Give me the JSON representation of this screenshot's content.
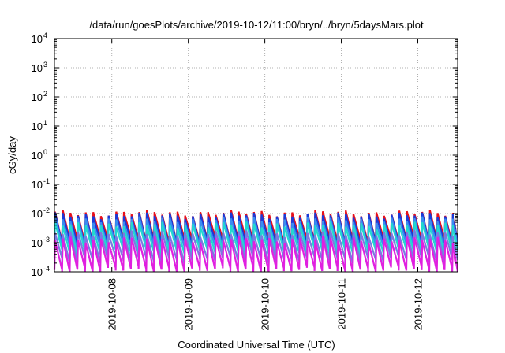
{
  "chart_data": {
    "type": "line",
    "title": "/data/run/goesPlots/archive/2019-10-12/11:00/bryn/../bryn/5daysMars.plot",
    "xlabel": "Coordinated Universal Time (UTC)",
    "ylabel": "cGy/day",
    "yscale": "log",
    "ylim": [
      0.0001,
      10000
    ],
    "y_ticks": [
      {
        "value": 0.0001,
        "base": "10",
        "exp": "-4"
      },
      {
        "value": 0.001,
        "base": "10",
        "exp": "-3"
      },
      {
        "value": 0.01,
        "base": "10",
        "exp": "-2"
      },
      {
        "value": 0.1,
        "base": "10",
        "exp": "-1"
      },
      {
        "value": 1,
        "base": "10",
        "exp": "0"
      },
      {
        "value": 10,
        "base": "10",
        "exp": "1"
      },
      {
        "value": 100,
        "base": "10",
        "exp": "2"
      },
      {
        "value": 1000,
        "base": "10",
        "exp": "3"
      },
      {
        "value": 10000,
        "base": "10",
        "exp": "4"
      }
    ],
    "xlim": [
      "2019-10-07 06:00",
      "2019-10-12 12:30"
    ],
    "x_ticks": [
      "2019-10-08",
      "2019-10-09",
      "2019-10-10",
      "2019-10-11",
      "2019-10-12"
    ],
    "grid": true,
    "pattern": "sawtooth",
    "period_hours": 2.4,
    "series": [
      {
        "color": "#e8101a",
        "peak": 0.0105,
        "trough": 0.0012
      },
      {
        "color": "#1a3ad8",
        "peak": 0.0088,
        "trough": 0.00095
      },
      {
        "color": "#3a8cf0",
        "peak": 0.0062,
        "trough": 0.00072
      },
      {
        "color": "#22d8d0",
        "peak": 0.0042,
        "trough": 0.00048
      },
      {
        "color": "#7a7ae0",
        "peak": 0.0021,
        "trough": 0.00026
      },
      {
        "color": "#e020e0",
        "peak": 0.0013,
        "trough": 0.00012
      }
    ]
  }
}
